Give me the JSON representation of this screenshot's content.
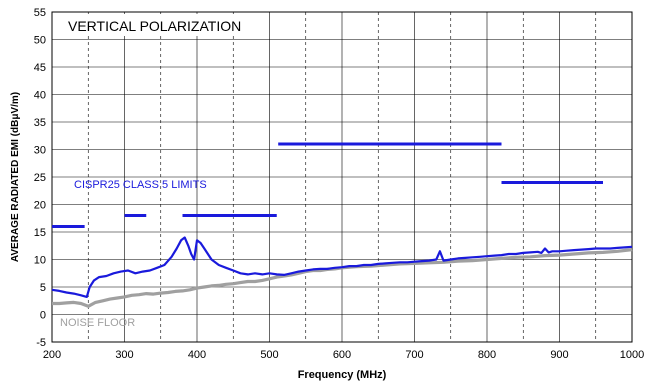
{
  "chart_data": {
    "type": "line",
    "title": "VERTICAL POLARIZATION",
    "xlabel": "Frequency (MHz)",
    "ylabel": "AVERAGE RADIATED EMI (dBμV/m)",
    "xlim": [
      200,
      1000
    ],
    "ylim": [
      -5,
      55
    ],
    "x_ticks": [
      200,
      300,
      400,
      500,
      600,
      700,
      800,
      900,
      1000
    ],
    "y_ticks": [
      -5,
      0,
      5,
      10,
      15,
      20,
      25,
      30,
      35,
      40,
      45,
      50,
      55
    ],
    "minor_x_gridlines": [
      250,
      350,
      450,
      550,
      650,
      750,
      850,
      950
    ],
    "grid": true,
    "annotations": [
      {
        "name": "cispr-limits-label",
        "text": "CISPR25 CLASS 5 LIMITS",
        "color": "#1a1adc"
      },
      {
        "name": "noise-floor-label",
        "text": "NOISE FLOOR",
        "color": "#a0a0a0"
      }
    ],
    "limit_segments": [
      {
        "x": [
          200,
          245
        ],
        "y": 16
      },
      {
        "x": [
          300,
          330
        ],
        "y": 18
      },
      {
        "x": [
          380,
          510
        ],
        "y": 18
      },
      {
        "x": [
          512,
          820
        ],
        "y": 31
      },
      {
        "x": [
          820,
          960
        ],
        "y": 24
      }
    ],
    "series": [
      {
        "color": "#1a1adc",
        "x": [
          200,
          210,
          220,
          230,
          240,
          248,
          252,
          258,
          265,
          275,
          285,
          295,
          305,
          315,
          325,
          335,
          345,
          355,
          365,
          372,
          378,
          383,
          388,
          392,
          396,
          400,
          405,
          410,
          415,
          420,
          430,
          440,
          450,
          460,
          470,
          480,
          490,
          500,
          510,
          520,
          530,
          540,
          550,
          560,
          570,
          580,
          590,
          600,
          610,
          620,
          630,
          640,
          650,
          660,
          670,
          680,
          690,
          700,
          710,
          720,
          730,
          735,
          740,
          750,
          760,
          770,
          780,
          790,
          800,
          810,
          820,
          830,
          840,
          850,
          860,
          870,
          875,
          880,
          885,
          890,
          900,
          910,
          920,
          930,
          940,
          950,
          960,
          970,
          980,
          990,
          1000
        ],
        "y": [
          4.5,
          4.3,
          4.0,
          3.8,
          3.5,
          3.2,
          5.0,
          6.2,
          6.8,
          7.0,
          7.5,
          7.8,
          8.0,
          7.5,
          7.8,
          8.0,
          8.5,
          9.0,
          10.5,
          12.0,
          13.5,
          14.0,
          12.5,
          11.0,
          10.0,
          13.5,
          13.0,
          12.0,
          11.0,
          10.0,
          9.0,
          8.5,
          8.0,
          7.5,
          7.3,
          7.5,
          7.3,
          7.5,
          7.3,
          7.2,
          7.5,
          7.8,
          8.0,
          8.2,
          8.3,
          8.3,
          8.5,
          8.6,
          8.8,
          8.8,
          9.0,
          9.0,
          9.2,
          9.3,
          9.4,
          9.5,
          9.5,
          9.6,
          9.7,
          9.8,
          10.0,
          11.5,
          9.8,
          10.0,
          10.2,
          10.3,
          10.4,
          10.5,
          10.6,
          10.7,
          10.8,
          11.0,
          11.0,
          11.2,
          11.3,
          11.4,
          11.2,
          12.0,
          11.3,
          11.5,
          11.5,
          11.6,
          11.7,
          11.8,
          11.9,
          12.0,
          12.0,
          12.0,
          12.1,
          12.2,
          12.3
        ]
      },
      {
        "color": "#a0a0a0",
        "x": [
          200,
          210,
          220,
          230,
          240,
          250,
          260,
          270,
          280,
          290,
          300,
          310,
          320,
          330,
          340,
          350,
          360,
          370,
          380,
          390,
          400,
          410,
          420,
          430,
          440,
          450,
          460,
          470,
          480,
          490,
          500,
          510,
          520,
          530,
          540,
          550,
          560,
          570,
          580,
          590,
          600,
          620,
          640,
          660,
          680,
          700,
          720,
          740,
          760,
          780,
          800,
          820,
          840,
          860,
          880,
          900,
          920,
          940,
          960,
          980,
          1000
        ],
        "y": [
          2.0,
          2.0,
          2.1,
          2.2,
          2.0,
          1.5,
          2.2,
          2.5,
          2.8,
          3.0,
          3.2,
          3.5,
          3.6,
          3.8,
          3.7,
          3.9,
          4.0,
          4.2,
          4.3,
          4.5,
          4.8,
          5.0,
          5.2,
          5.3,
          5.5,
          5.6,
          5.8,
          6.0,
          6.0,
          6.2,
          6.5,
          6.8,
          7.0,
          7.2,
          7.5,
          7.8,
          8.0,
          8.0,
          8.2,
          8.3,
          8.5,
          8.7,
          8.8,
          9.0,
          9.2,
          9.3,
          9.4,
          9.5,
          9.7,
          9.8,
          10.0,
          10.2,
          10.4,
          10.5,
          10.7,
          10.8,
          11.0,
          11.2,
          11.3,
          11.5,
          11.8
        ]
      }
    ]
  }
}
